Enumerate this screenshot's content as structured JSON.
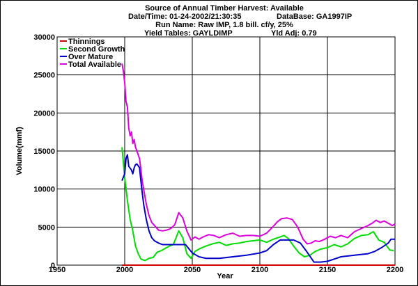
{
  "header": {
    "title": "Source of Annual Timber Harvest: Available",
    "datetime": "Date/Time: 01-24-2002/21:30:35",
    "database": "DataBase: GA1997IP",
    "run_name": "Run Name: Raw IMP, 1.8 bill. cf/y, 25%",
    "yield_tables": "Yield Tables: GAYLDIMP",
    "yld_adj": "Yld Adj: 0.79"
  },
  "chart_data": {
    "type": "line",
    "xlabel": "Year",
    "ylabel": "Volume(mmf)",
    "xlim": [
      1950,
      2200
    ],
    "ylim": [
      0,
      30000
    ],
    "xticks": [
      1950,
      2000,
      2050,
      2100,
      2150,
      2200
    ],
    "yticks": [
      0,
      5000,
      10000,
      15000,
      20000,
      25000,
      30000
    ],
    "grid": true,
    "legend_position": "top-left",
    "series": [
      {
        "name": "Thinnings",
        "color": "#cc0000",
        "x": [
          1998,
          2200
        ],
        "y": [
          0,
          0
        ]
      },
      {
        "name": "Second Growth",
        "color": "#00dd00",
        "x": [
          1998,
          2000,
          2002,
          2004,
          2006,
          2008,
          2010,
          2012,
          2015,
          2018,
          2021,
          2024,
          2027,
          2030,
          2033,
          2036,
          2040,
          2043,
          2046,
          2049,
          2052,
          2056,
          2060,
          2065,
          2070,
          2075,
          2080,
          2085,
          2090,
          2095,
          2100,
          2105,
          2110,
          2115,
          2118,
          2121,
          2125,
          2129,
          2133,
          2137,
          2141,
          2145,
          2150,
          2155,
          2160,
          2165,
          2170,
          2175,
          2180,
          2184,
          2188,
          2192,
          2196,
          2199
        ],
        "y": [
          15500,
          11500,
          8500,
          6000,
          4500,
          2500,
          1500,
          800,
          600,
          900,
          1000,
          1700,
          1900,
          2200,
          2500,
          2700,
          4500,
          3600,
          1500,
          900,
          1800,
          2200,
          2500,
          2800,
          3000,
          2600,
          2800,
          2900,
          3100,
          3200,
          3300,
          3000,
          3400,
          3700,
          3900,
          3500,
          2500,
          1600,
          1100,
          1300,
          1800,
          2100,
          2300,
          2700,
          2400,
          2800,
          3500,
          3900,
          4000,
          4400,
          3300,
          3000,
          2000,
          1900
        ]
      },
      {
        "name": "Over Mature",
        "color": "#0000cc",
        "x": [
          1998,
          2000,
          2001,
          2002,
          2003,
          2005,
          2006,
          2007,
          2008,
          2009,
          2011,
          2012,
          2013,
          2014,
          2016,
          2018,
          2020,
          2022,
          2025,
          2028,
          2031,
          2035,
          2040,
          2045,
          2050,
          2055,
          2060,
          2070,
          2080,
          2090,
          2100,
          2105,
          2110,
          2115,
          2120,
          2125,
          2130,
          2135,
          2140,
          2145,
          2150,
          2155,
          2160,
          2170,
          2180,
          2185,
          2190,
          2195,
          2197,
          2200
        ],
        "y": [
          11100,
          12000,
          14000,
          14500,
          13000,
          12500,
          12000,
          12800,
          13200,
          13300,
          12800,
          11000,
          9500,
          8000,
          6000,
          4500,
          3600,
          3200,
          2900,
          2700,
          2700,
          2700,
          2700,
          2700,
          1600,
          1100,
          900,
          900,
          1100,
          1300,
          1600,
          1900,
          2700,
          3300,
          3300,
          3300,
          2900,
          1700,
          400,
          400,
          500,
          800,
          1100,
          1300,
          1500,
          1800,
          2300,
          2900,
          3400,
          3400
        ]
      },
      {
        "name": "Total Available",
        "color": "#dd00dd",
        "x": [
          1998,
          1999,
          2000,
          2001,
          2002,
          2003,
          2004,
          2005,
          2006,
          2007,
          2008,
          2009,
          2010,
          2011,
          2012,
          2013,
          2014,
          2016,
          2018,
          2020,
          2022,
          2025,
          2028,
          2031,
          2034,
          2037,
          2040,
          2043,
          2046,
          2049,
          2052,
          2055,
          2058,
          2062,
          2066,
          2070,
          2075,
          2080,
          2085,
          2090,
          2095,
          2100,
          2105,
          2110,
          2113,
          2116,
          2120,
          2124,
          2128,
          2132,
          2135,
          2138,
          2141,
          2144,
          2148,
          2152,
          2156,
          2160,
          2165,
          2170,
          2175,
          2180,
          2183,
          2186,
          2189,
          2192,
          2195,
          2198,
          2200
        ],
        "y": [
          26500,
          25500,
          24000,
          21500,
          20800,
          18000,
          17000,
          17500,
          16000,
          16500,
          15500,
          15000,
          14500,
          14000,
          12500,
          11000,
          10000,
          8000,
          6500,
          5600,
          5200,
          4600,
          4500,
          4600,
          4800,
          5300,
          6900,
          6200,
          4500,
          3300,
          3700,
          3400,
          3700,
          4000,
          3900,
          3600,
          4000,
          4200,
          3800,
          3900,
          3900,
          3800,
          4200,
          5100,
          5700,
          6100,
          6200,
          6000,
          5000,
          3400,
          2800,
          2900,
          3200,
          3100,
          3400,
          3800,
          3600,
          3900,
          3600,
          4400,
          4800,
          5200,
          5500,
          5900,
          5600,
          5800,
          5500,
          5200,
          5400
        ]
      }
    ]
  }
}
